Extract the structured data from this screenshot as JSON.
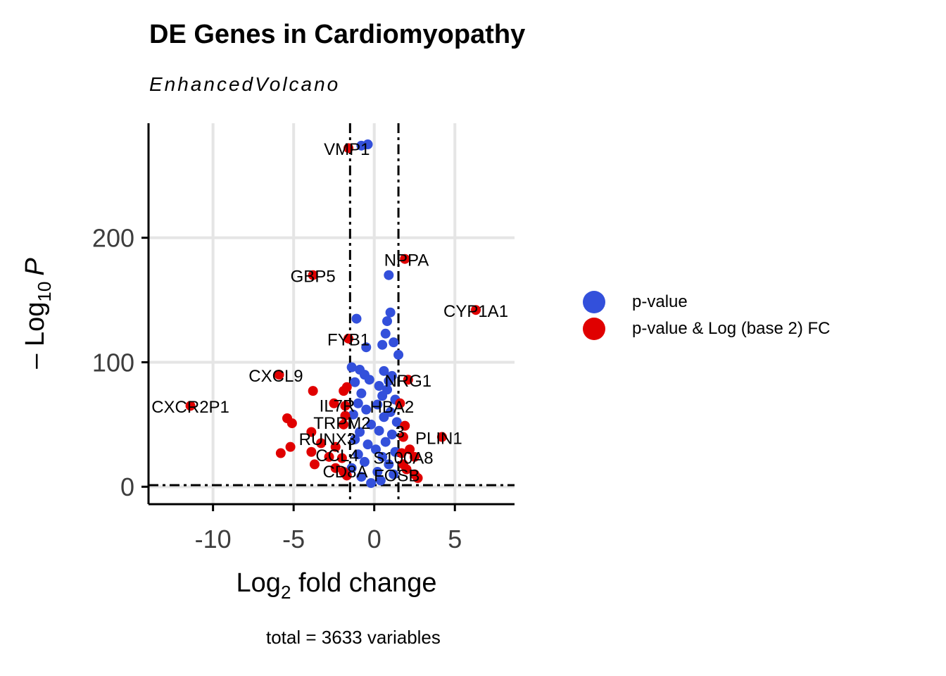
{
  "chart_data": {
    "type": "scatter",
    "title": "DE Genes in Cardiomyopathy",
    "subtitle": "EnhancedVolcano",
    "xlabel_main": "Log",
    "xlabel_sub": "2",
    "xlabel_rest": " fold change",
    "ylabel_prefix": "– Log",
    "ylabel_sub": "10",
    "ylabel_var": "P",
    "caption": "total = 3633 variables",
    "xlim": [
      -14,
      8.7
    ],
    "ylim": [
      -14,
      292
    ],
    "x_ticks": [
      -10,
      -5,
      0,
      5
    ],
    "x_tick_labels": [
      "-10",
      "-5",
      "0",
      "5"
    ],
    "y_ticks": [
      0,
      100,
      200
    ],
    "y_tick_labels": [
      "0",
      "100",
      "200"
    ],
    "fc_cutoff": 1.5,
    "p_cutoff_log10": 1.3,
    "grid": true,
    "legend_position": "right",
    "colors": {
      "pvalue": "#3350db",
      "both": "#e00000",
      "label": "#000000"
    },
    "series": [
      {
        "name": "p-value",
        "color": "#3350db",
        "points": [
          [
            -0.4,
            275
          ],
          [
            -0.8,
            274
          ],
          [
            0.9,
            170
          ],
          [
            -1.1,
            135
          ],
          [
            1.0,
            140
          ],
          [
            0.8,
            133
          ],
          [
            0.7,
            123
          ],
          [
            1.2,
            116
          ],
          [
            0.5,
            114
          ],
          [
            -0.5,
            112
          ],
          [
            1.5,
            106
          ],
          [
            -1.4,
            96
          ],
          [
            -0.9,
            94
          ],
          [
            -0.6,
            90
          ],
          [
            0.6,
            93
          ],
          [
            1.1,
            89
          ],
          [
            -0.3,
            86
          ],
          [
            0.9,
            85
          ],
          [
            -1.2,
            84
          ],
          [
            0.3,
            81
          ],
          [
            0.8,
            78
          ],
          [
            -0.8,
            75
          ],
          [
            0.5,
            73
          ],
          [
            1.3,
            70
          ],
          [
            -1.0,
            67
          ],
          [
            0.2,
            66
          ],
          [
            -0.5,
            62
          ],
          [
            1.0,
            60
          ],
          [
            -1.3,
            58
          ],
          [
            0.6,
            56
          ],
          [
            1.4,
            52
          ],
          [
            -0.2,
            50
          ],
          [
            0.3,
            45
          ],
          [
            -0.9,
            44
          ],
          [
            1.1,
            42
          ],
          [
            -1.2,
            38
          ],
          [
            0.7,
            36
          ],
          [
            -0.4,
            34
          ],
          [
            0.1,
            30
          ],
          [
            1.3,
            28
          ],
          [
            -1.0,
            26
          ],
          [
            0.5,
            24
          ],
          [
            -0.6,
            20
          ],
          [
            0.9,
            18
          ],
          [
            -1.4,
            15
          ],
          [
            0.2,
            12
          ],
          [
            1.2,
            10
          ],
          [
            -0.8,
            8
          ],
          [
            0.4,
            5
          ],
          [
            -0.2,
            3
          ]
        ]
      },
      {
        "name": "p-value & Log (base 2) FC",
        "color": "#e00000",
        "points": [
          [
            -1.6,
            272
          ],
          [
            1.9,
            183
          ],
          [
            -3.8,
            170
          ],
          [
            6.3,
            142
          ],
          [
            -1.6,
            119
          ],
          [
            -5.9,
            90
          ],
          [
            2.1,
            86
          ],
          [
            -3.8,
            77
          ],
          [
            -1.9,
            77
          ],
          [
            -1.7,
            80
          ],
          [
            -11.4,
            65
          ],
          [
            -2.5,
            67
          ],
          [
            1.6,
            67
          ],
          [
            -1.8,
            65
          ],
          [
            -5.4,
            55
          ],
          [
            -5.1,
            51
          ],
          [
            -1.8,
            57
          ],
          [
            -1.9,
            50
          ],
          [
            1.9,
            49
          ],
          [
            -3.9,
            44
          ],
          [
            4.2,
            40
          ],
          [
            1.8,
            40
          ],
          [
            -3.3,
            35
          ],
          [
            -2.4,
            32
          ],
          [
            -5.2,
            32
          ],
          [
            -5.8,
            27
          ],
          [
            -3.9,
            28
          ],
          [
            2.2,
            30
          ],
          [
            -2.8,
            24
          ],
          [
            -2.0,
            23
          ],
          [
            2.5,
            24
          ],
          [
            1.7,
            27
          ],
          [
            -3.7,
            18
          ],
          [
            -2.4,
            15
          ],
          [
            2.0,
            14
          ],
          [
            -1.9,
            12
          ],
          [
            2.5,
            10
          ],
          [
            2.7,
            7
          ],
          [
            -1.7,
            9
          ],
          [
            1.8,
            18
          ]
        ]
      }
    ],
    "labels": [
      {
        "text": "VMP1",
        "x": -1.7,
        "y": 271
      },
      {
        "text": "NPPA",
        "x": 2.0,
        "y": 182
      },
      {
        "text": "GBP5",
        "x": -3.8,
        "y": 169
      },
      {
        "text": "CYP1A1",
        "x": 6.3,
        "y": 141
      },
      {
        "text": "FYB1",
        "x": -1.6,
        "y": 118
      },
      {
        "text": "CXCL9",
        "x": -6.1,
        "y": 89
      },
      {
        "text": "NRG1",
        "x": 2.1,
        "y": 85
      },
      {
        "text": "CXCR2P1",
        "x": -11.4,
        "y": 64
      },
      {
        "text": "IL7R",
        "x": -2.3,
        "y": 65
      },
      {
        "text": "HBA2",
        "x": 1.1,
        "y": 64
      },
      {
        "text": "TRPM2",
        "x": -2.0,
        "y": 51
      },
      {
        "text": "3",
        "x": 1.6,
        "y": 44
      },
      {
        "text": "PLIN1",
        "x": 4.0,
        "y": 39
      },
      {
        "text": "RUNX3",
        "x": -2.9,
        "y": 38
      },
      {
        "text": "CCL4",
        "x": -2.3,
        "y": 25
      },
      {
        "text": "S100A8",
        "x": 1.8,
        "y": 23
      },
      {
        "text": "CD8A",
        "x": -1.8,
        "y": 12
      },
      {
        "text": "FOSB",
        "x": 1.4,
        "y": 9
      }
    ]
  }
}
